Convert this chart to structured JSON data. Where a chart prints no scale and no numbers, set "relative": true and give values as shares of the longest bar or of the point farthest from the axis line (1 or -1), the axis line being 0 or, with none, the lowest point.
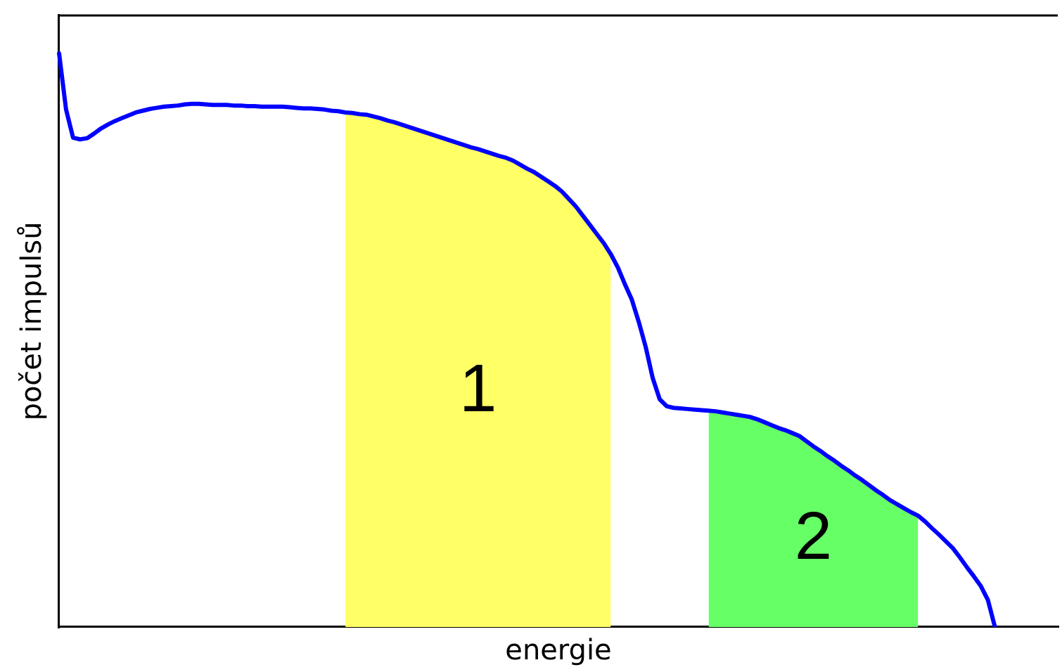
{
  "chart_data": {
    "type": "line",
    "xlabel": "energie",
    "ylabel": "počet impulsů",
    "relative": true,
    "legend": false,
    "marker": "none",
    "categories": [
      null,
      null,
      null,
      null,
      null,
      null,
      null,
      null,
      null,
      null,
      null,
      null,
      null,
      null,
      null,
      null,
      null,
      null,
      null,
      null,
      null,
      null,
      null,
      null,
      null,
      null,
      null,
      null,
      null,
      null,
      null,
      null,
      null,
      null,
      null,
      null,
      null,
      null,
      null,
      null,
      null,
      null,
      null,
      null,
      null,
      null,
      null,
      null,
      null,
      null,
      null,
      null,
      null,
      null,
      null,
      null,
      null,
      null,
      null,
      null,
      null,
      null,
      null,
      null,
      null,
      null,
      null,
      null,
      null,
      null,
      null,
      null,
      null,
      null,
      null,
      null,
      null,
      null,
      null,
      null,
      null,
      null,
      null,
      null,
      null,
      null,
      null,
      null,
      null,
      null,
      null,
      null,
      null,
      null,
      null,
      null,
      null,
      null,
      null,
      null,
      null,
      null,
      null,
      null,
      null,
      null,
      null,
      null,
      null,
      null,
      null,
      null,
      null,
      null,
      null,
      null,
      null,
      null,
      null,
      null,
      null,
      null,
      null,
      null,
      null,
      null,
      null,
      null,
      null,
      null,
      null,
      null,
      null,
      null,
      null,
      null,
      null,
      null,
      null,
      null,
      null,
      null,
      null,
      null
    ],
    "series": [
      {
        "color": "#0000ff",
        "values": [
          1,
          0.902,
          0.853,
          0.85,
          0.852,
          0.86,
          0.869,
          0.876,
          0.882,
          0.887,
          0.892,
          0.897,
          0.9,
          0.903,
          0.905,
          0.907,
          0.908,
          0.909,
          0.911,
          0.912,
          0.912,
          0.911,
          0.91,
          0.91,
          0.91,
          0.909,
          0.909,
          0.908,
          0.908,
          0.907,
          0.907,
          0.907,
          0.907,
          0.906,
          0.905,
          0.904,
          0.904,
          0.903,
          0.902,
          0.9,
          0.899,
          0.897,
          0.896,
          0.894,
          0.893,
          0.89,
          0.887,
          0.883,
          0.88,
          0.876,
          0.872,
          0.868,
          0.864,
          0.86,
          0.856,
          0.852,
          0.848,
          0.844,
          0.84,
          0.836,
          0.833,
          0.829,
          0.825,
          0.821,
          0.818,
          0.813,
          0.806,
          0.799,
          0.793,
          0.785,
          0.777,
          0.769,
          0.759,
          0.746,
          0.733,
          0.717,
          0.701,
          0.685,
          0.669,
          0.65,
          0.627,
          0.598,
          0.571,
          0.532,
          0.488,
          0.434,
          0.397,
          0.385,
          0.382,
          0.381,
          0.38,
          0.379,
          0.378,
          0.377,
          0.376,
          0.374,
          0.372,
          0.37,
          0.368,
          0.366,
          0.362,
          0.357,
          0.352,
          0.347,
          0.343,
          0.338,
          0.333,
          0.324,
          0.315,
          0.307,
          0.298,
          0.29,
          0.281,
          0.273,
          0.264,
          0.256,
          0.247,
          0.238,
          0.23,
          0.221,
          0.214,
          0.207,
          0.2,
          0.194,
          0.184,
          0.172,
          0.161,
          0.149,
          0.137,
          0.121,
          0.104,
          0.088,
          0.071,
          0.047,
          0,
          null,
          null,
          null,
          null,
          null,
          null,
          null,
          null,
          null
        ]
      },
      {
        "name": "1",
        "type": "area",
        "color": "#ffff66",
        "values": [
          null,
          null,
          null,
          null,
          null,
          null,
          null,
          null,
          null,
          null,
          null,
          null,
          null,
          null,
          null,
          null,
          null,
          null,
          null,
          null,
          null,
          null,
          null,
          null,
          null,
          null,
          null,
          null,
          null,
          null,
          null,
          null,
          null,
          null,
          null,
          null,
          null,
          null,
          null,
          null,
          null,
          0.897,
          0.896,
          0.894,
          0.893,
          0.89,
          0.887,
          0.883,
          0.88,
          0.876,
          0.872,
          0.868,
          0.864,
          0.86,
          0.856,
          0.852,
          0.848,
          0.844,
          0.84,
          0.836,
          0.833,
          0.829,
          0.825,
          0.821,
          0.818,
          0.813,
          0.806,
          0.799,
          0.793,
          0.785,
          0.777,
          0.769,
          0.759,
          0.746,
          0.733,
          0.717,
          0.701,
          0.685,
          0.669,
          0.65,
          null,
          null,
          null,
          null,
          null,
          null,
          null,
          null,
          null,
          null,
          null,
          null,
          null,
          null,
          null,
          null,
          null,
          null,
          null,
          null,
          null,
          null,
          null,
          null,
          null,
          null,
          null,
          null,
          null,
          null,
          null,
          null,
          null,
          null,
          null,
          null,
          null,
          null,
          null,
          null,
          null,
          null,
          null,
          null,
          null,
          null,
          null,
          null,
          null,
          null,
          null,
          null,
          null,
          null,
          null,
          null,
          null,
          null,
          null,
          null,
          null,
          null,
          null,
          null
        ]
      },
      {
        "name": "2",
        "type": "area",
        "color": "#66ff66",
        "values": [
          null,
          null,
          null,
          null,
          null,
          null,
          null,
          null,
          null,
          null,
          null,
          null,
          null,
          null,
          null,
          null,
          null,
          null,
          null,
          null,
          null,
          null,
          null,
          null,
          null,
          null,
          null,
          null,
          null,
          null,
          null,
          null,
          null,
          null,
          null,
          null,
          null,
          null,
          null,
          null,
          null,
          null,
          null,
          null,
          null,
          null,
          null,
          null,
          null,
          null,
          null,
          null,
          null,
          null,
          null,
          null,
          null,
          null,
          null,
          null,
          null,
          null,
          null,
          null,
          null,
          null,
          null,
          null,
          null,
          null,
          null,
          null,
          null,
          null,
          null,
          null,
          null,
          null,
          null,
          null,
          null,
          null,
          null,
          null,
          null,
          null,
          null,
          null,
          null,
          null,
          null,
          null,
          null,
          0.377,
          0.376,
          0.374,
          0.372,
          0.37,
          0.368,
          0.366,
          0.362,
          0.357,
          0.352,
          0.347,
          0.343,
          0.338,
          0.333,
          0.324,
          0.315,
          0.307,
          0.298,
          0.29,
          0.281,
          0.273,
          0.264,
          0.256,
          0.247,
          0.238,
          0.23,
          0.221,
          0.214,
          0.207,
          0.2,
          0.194,
          null,
          null,
          null,
          null,
          null,
          null,
          null,
          null,
          null,
          null,
          null,
          null,
          null,
          null,
          null,
          null,
          null,
          null,
          null,
          null
        ]
      }
    ]
  }
}
